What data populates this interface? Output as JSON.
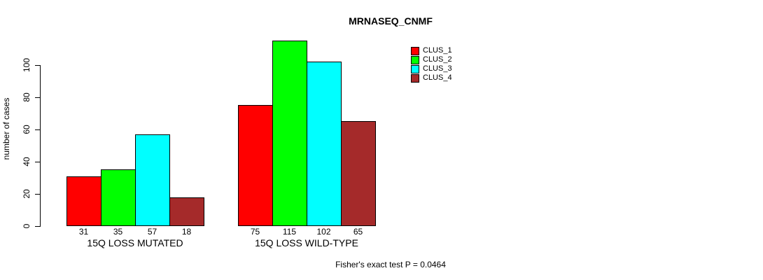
{
  "chart_data": {
    "type": "bar",
    "title": "MRNASEQ_CNMF",
    "ylabel": "number of cases",
    "xlabel": "",
    "ylim": [
      0,
      115
    ],
    "yticks": [
      0,
      20,
      40,
      60,
      80,
      100
    ],
    "grid": false,
    "legend_position": "top-right",
    "categories": [
      "15Q LOSS MUTATED",
      "15Q LOSS WILD-TYPE"
    ],
    "series": [
      {
        "name": "CLUS_1",
        "color": "#ff0000",
        "values": [
          31,
          75
        ]
      },
      {
        "name": "CLUS_2",
        "color": "#00ff00",
        "values": [
          35,
          115
        ]
      },
      {
        "name": "CLUS_3",
        "color": "#00ffff",
        "values": [
          57,
          102
        ]
      },
      {
        "name": "CLUS_4",
        "color": "#a52a2a",
        "values": [
          18,
          65
        ]
      }
    ],
    "bar_value_labels_shown": true,
    "annotation": "Fisher's exact test P = 0.0464"
  }
}
